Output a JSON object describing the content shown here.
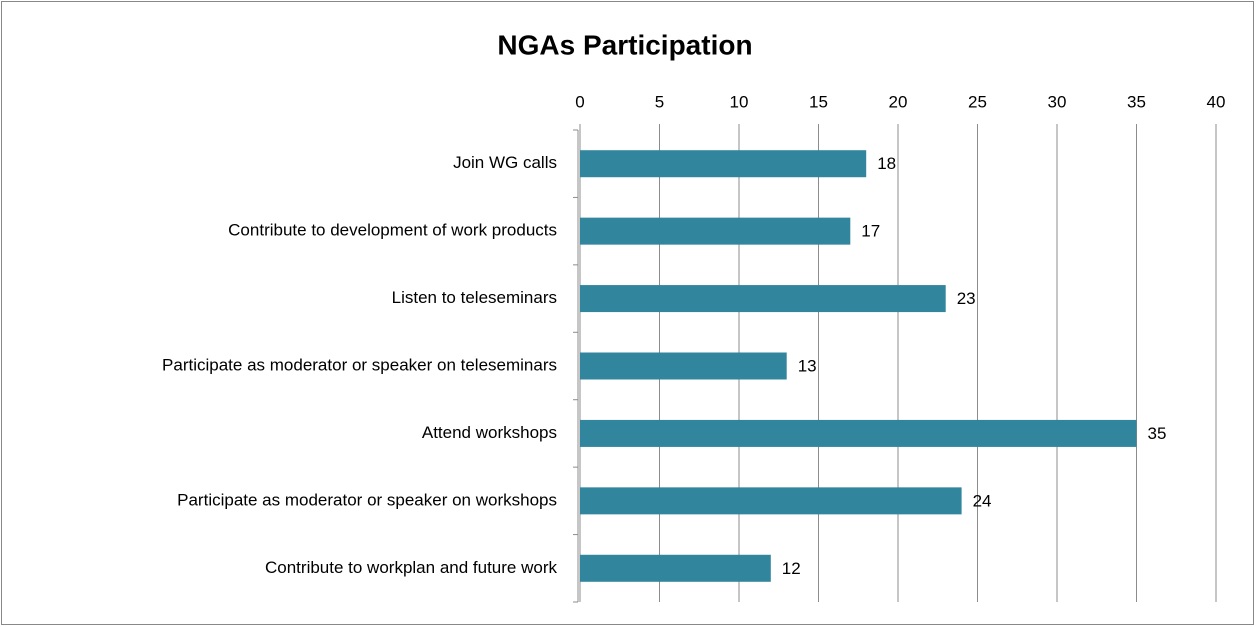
{
  "chart_data": {
    "type": "hbar",
    "title": "NGAs Participation",
    "categories": [
      "Join WG calls",
      "Contribute to development of work products",
      "Listen to teleseminars",
      "Participate as moderator or speaker on teleseminars",
      "Attend workshops",
      "Participate as moderator or speaker on workshops",
      "Contribute to workplan and future work"
    ],
    "values": [
      18,
      17,
      23,
      13,
      35,
      24,
      12
    ],
    "color": "#31859c",
    "xlim": [
      0,
      40
    ],
    "xticks": [
      0,
      5,
      10,
      15,
      20,
      25,
      30,
      35,
      40
    ],
    "grid": true
  }
}
